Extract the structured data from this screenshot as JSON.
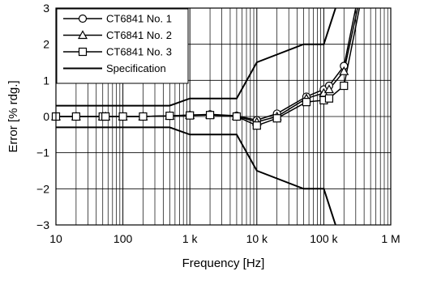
{
  "chart_data": {
    "type": "line",
    "xlabel": "Frequency [Hz]",
    "ylabel": "Error [% rdg.]",
    "x_scale": "log",
    "xlim": [
      10,
      1000000
    ],
    "ylim": [
      -3,
      3
    ],
    "grid": true,
    "legend_position": "top-left",
    "x_ticks": [
      {
        "value": 10,
        "label": "10"
      },
      {
        "value": 100,
        "label": "100"
      },
      {
        "value": 1000,
        "label": "1 k"
      },
      {
        "value": 10000,
        "label": "10 k"
      },
      {
        "value": 100000,
        "label": "100 k"
      },
      {
        "value": 1000000,
        "label": "1 M"
      }
    ],
    "y_ticks": [
      {
        "value": 3,
        "label": "3"
      },
      {
        "value": 2,
        "label": "2"
      },
      {
        "value": 1,
        "label": "1"
      },
      {
        "value": 0,
        "label": "0"
      },
      {
        "value": -1,
        "label": "−1"
      },
      {
        "value": -2,
        "label": "−2"
      },
      {
        "value": -3,
        "label": "−3"
      }
    ],
    "series": [
      {
        "name": "CT6841 No. 1",
        "marker": "circle",
        "x": [
          10,
          20,
          50,
          55,
          100,
          200,
          500,
          1000,
          2000,
          5000,
          10000,
          20000,
          55000,
          100000,
          120000,
          200000,
          300000
        ],
        "y": [
          0.0,
          0.0,
          0.0,
          0.0,
          0.0,
          0.0,
          0.02,
          0.04,
          0.06,
          0.02,
          -0.1,
          0.08,
          0.55,
          0.75,
          0.85,
          1.4,
          3.0
        ]
      },
      {
        "name": "CT6841 No. 2",
        "marker": "triangle",
        "x": [
          10,
          20,
          50,
          55,
          100,
          200,
          500,
          1000,
          2000,
          5000,
          10000,
          20000,
          55000,
          100000,
          120000,
          200000,
          320000
        ],
        "y": [
          0.0,
          0.0,
          0.0,
          0.0,
          0.0,
          0.0,
          0.02,
          0.04,
          0.05,
          0.01,
          -0.15,
          0.0,
          0.5,
          0.65,
          0.75,
          1.25,
          3.0
        ]
      },
      {
        "name": "CT6841 No. 3",
        "marker": "square",
        "x": [
          10,
          20,
          50,
          55,
          100,
          200,
          500,
          1000,
          2000,
          5000,
          10000,
          20000,
          55000,
          100000,
          120000,
          200000,
          340000
        ],
        "y": [
          0.0,
          0.0,
          0.0,
          0.0,
          0.0,
          0.0,
          0.02,
          0.03,
          0.04,
          0.0,
          -0.25,
          -0.05,
          0.4,
          0.45,
          0.5,
          0.85,
          3.0
        ]
      },
      {
        "name": "Specification",
        "marker": "none",
        "x": [
          10,
          500,
          1000,
          5000,
          10000,
          50000,
          100000,
          150000
        ],
        "y": [
          0.3,
          0.3,
          0.5,
          0.5,
          1.5,
          2.0,
          2.0,
          3.0
        ]
      },
      {
        "name": "",
        "marker": "none",
        "x": [
          10,
          500,
          1000,
          5000,
          10000,
          50000,
          100000,
          150000
        ],
        "y": [
          -0.3,
          -0.3,
          -0.5,
          -0.5,
          -1.5,
          -2.0,
          -2.0,
          -3.0
        ]
      }
    ]
  }
}
